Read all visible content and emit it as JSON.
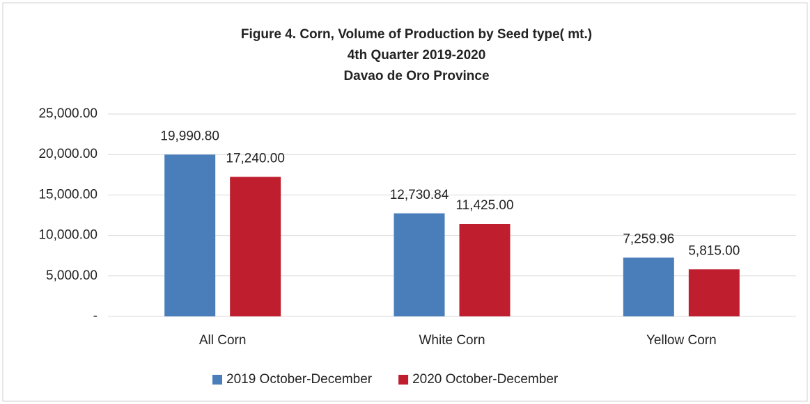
{
  "chart_data": {
    "type": "bar",
    "title": [
      "Figure 4. Corn, Volume of Production by Seed type( mt.)",
      "4th Quarter 2019-2020",
      "Davao de Oro Province"
    ],
    "categories": [
      "All Corn",
      "White Corn",
      "Yellow Corn"
    ],
    "series": [
      {
        "name": "2019 October-December",
        "color": "#4a7ebb",
        "values": [
          19990.8,
          12730.84,
          7259.96
        ],
        "value_labels": [
          "19,990.80",
          "12,730.84",
          "7,259.96"
        ]
      },
      {
        "name": "2020 October-December",
        "color": "#be1e2d",
        "values": [
          17240.0,
          11425.0,
          5815.0
        ],
        "value_labels": [
          "17,240.00",
          "11,425.00",
          "5,815.00"
        ]
      }
    ],
    "ylim": [
      0,
      25000
    ],
    "yticks": [
      {
        "value": 0,
        "label": "-"
      },
      {
        "value": 5000,
        "label": "5,000.00"
      },
      {
        "value": 10000,
        "label": "10,000.00"
      },
      {
        "value": 15000,
        "label": "15,000.00"
      },
      {
        "value": 20000,
        "label": "20,000.00"
      },
      {
        "value": 25000,
        "label": "25,000.00"
      }
    ],
    "grid": true,
    "legend": "bottom"
  }
}
